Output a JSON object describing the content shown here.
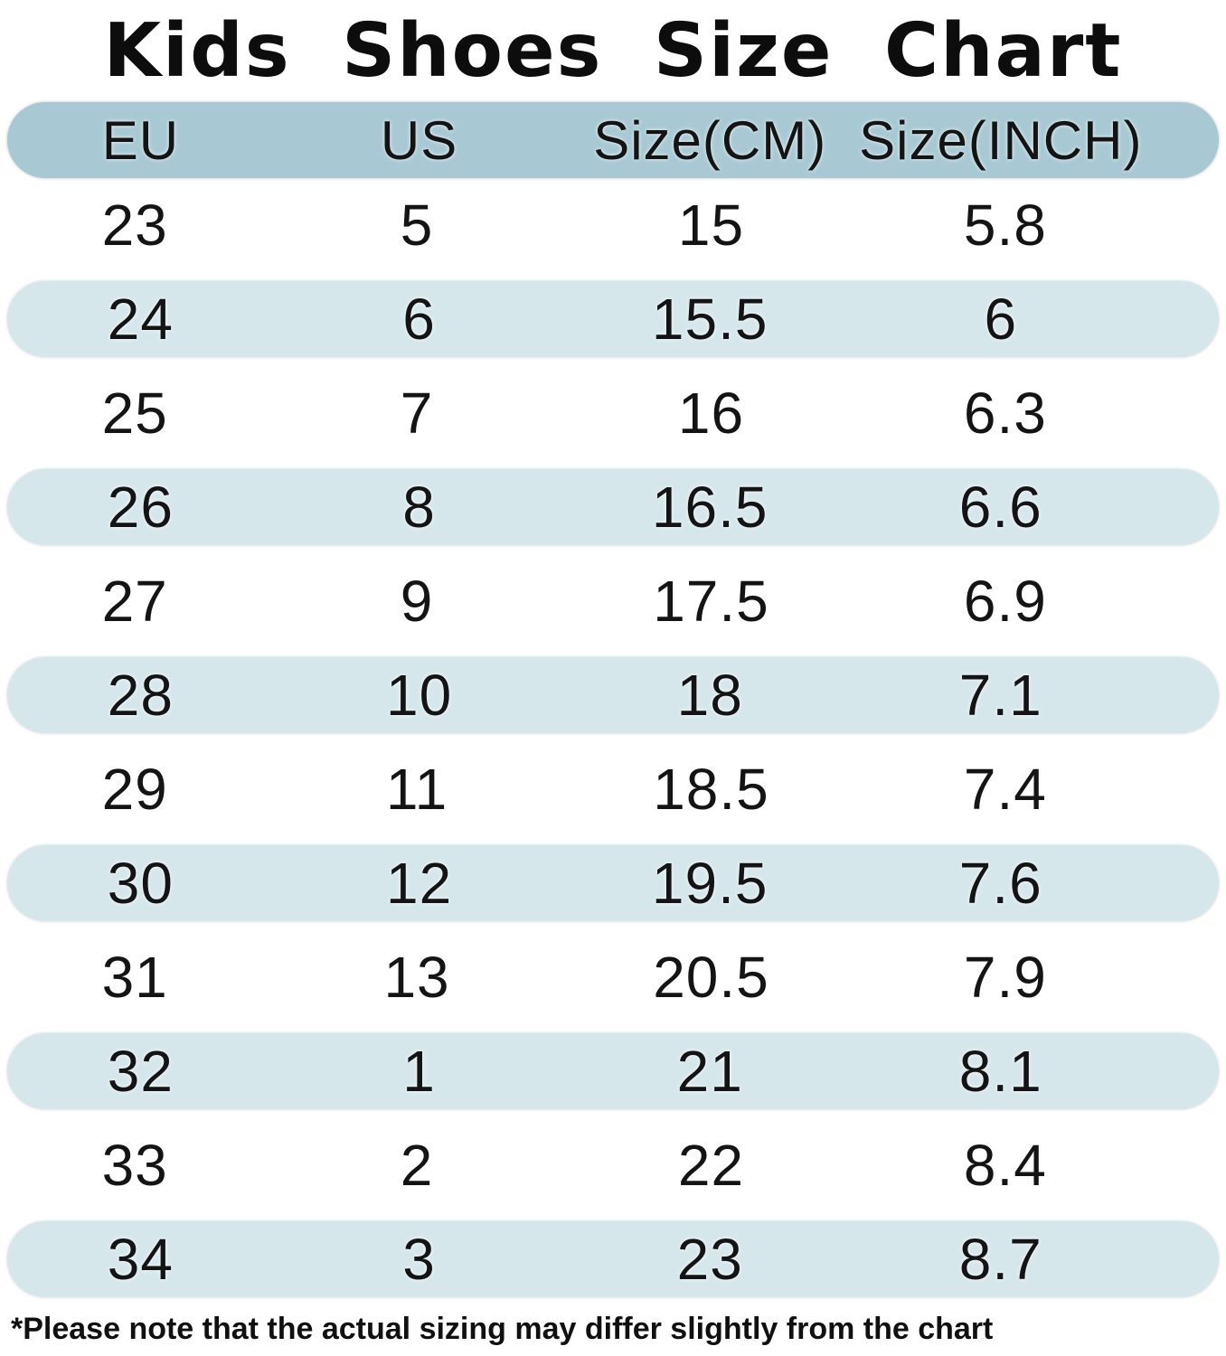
{
  "title": "Kids  Shoes  Size  Chart",
  "colors": {
    "header_bg": "#a8c9d4",
    "row_alt_bg": "#d6e7ec",
    "text": "#141414",
    "background": "#ffffff"
  },
  "table": {
    "columns": [
      "EU",
      "US",
      "Size(CM)",
      "Size(INCH)"
    ],
    "rows": [
      [
        "23",
        "5",
        "15",
        "5.8"
      ],
      [
        "24",
        "6",
        "15.5",
        "6"
      ],
      [
        "25",
        "7",
        "16",
        "6.3"
      ],
      [
        "26",
        "8",
        "16.5",
        "6.6"
      ],
      [
        "27",
        "9",
        "17.5",
        "6.9"
      ],
      [
        "28",
        "10",
        "18",
        "7.1"
      ],
      [
        "29",
        "11",
        "18.5",
        "7.4"
      ],
      [
        "30",
        "12",
        "19.5",
        "7.6"
      ],
      [
        "31",
        "13",
        "20.5",
        "7.9"
      ],
      [
        "32",
        "1",
        "21",
        "8.1"
      ],
      [
        "33",
        "2",
        "22",
        "8.4"
      ],
      [
        "34",
        "3",
        "23",
        "8.7"
      ]
    ]
  },
  "footnote": "*Please note that the actual sizing may differ slightly from the chart"
}
